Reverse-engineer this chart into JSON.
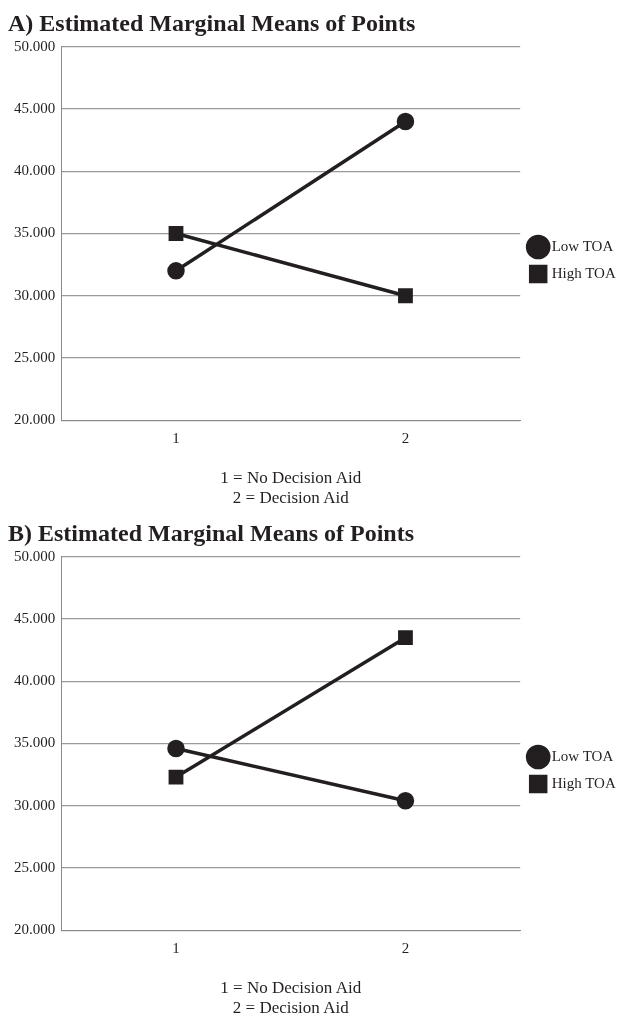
{
  "chart_data": [
    {
      "type": "line",
      "title": "A) Estimated Marginal Means of Points",
      "xlabel": "1 = No Decision Aid\n2 = Decision Aid",
      "categories": [
        "1",
        "2"
      ],
      "series": [
        {
          "name": "Low TOA",
          "color": "#231f20",
          "marker": "circle",
          "values": [
            32.0,
            44.0
          ]
        },
        {
          "name": "High TOA",
          "color": "#231f20",
          "marker": "square",
          "values": [
            35.0,
            30.0
          ]
        }
      ],
      "ylim": [
        20,
        50
      ],
      "yticks": [
        {
          "value": 20,
          "label": "20.000"
        },
        {
          "value": 25,
          "label": "25.000"
        },
        {
          "value": 30,
          "label": "30.000"
        },
        {
          "value": 35,
          "label": "35.000"
        },
        {
          "value": 40,
          "label": "40.000"
        },
        {
          "value": 45,
          "label": "45.000"
        },
        {
          "value": 50,
          "label": "50.000"
        }
      ],
      "grid": "y",
      "legend": "right"
    },
    {
      "type": "line",
      "title": "B) Estimated Marginal Means of Points",
      "xlabel": "1 = No Decision Aid\n2 = Decision Aid",
      "categories": [
        "1",
        "2"
      ],
      "series": [
        {
          "name": "Low TOA",
          "color": "#231f20",
          "marker": "circle",
          "values": [
            34.6,
            30.4
          ]
        },
        {
          "name": "High TOA",
          "color": "#231f20",
          "marker": "square",
          "values": [
            32.3,
            43.5
          ]
        }
      ],
      "ylim": [
        20,
        50
      ],
      "yticks": [
        {
          "value": 20,
          "label": "20.000"
        },
        {
          "value": 25,
          "label": "25.000"
        },
        {
          "value": 30,
          "label": "30.000"
        },
        {
          "value": 35,
          "label": "35.000"
        },
        {
          "value": 40,
          "label": "40.000"
        },
        {
          "value": 45,
          "label": "45.000"
        },
        {
          "value": 50,
          "label": "50.000"
        }
      ],
      "grid": "y",
      "legend": "right"
    }
  ]
}
